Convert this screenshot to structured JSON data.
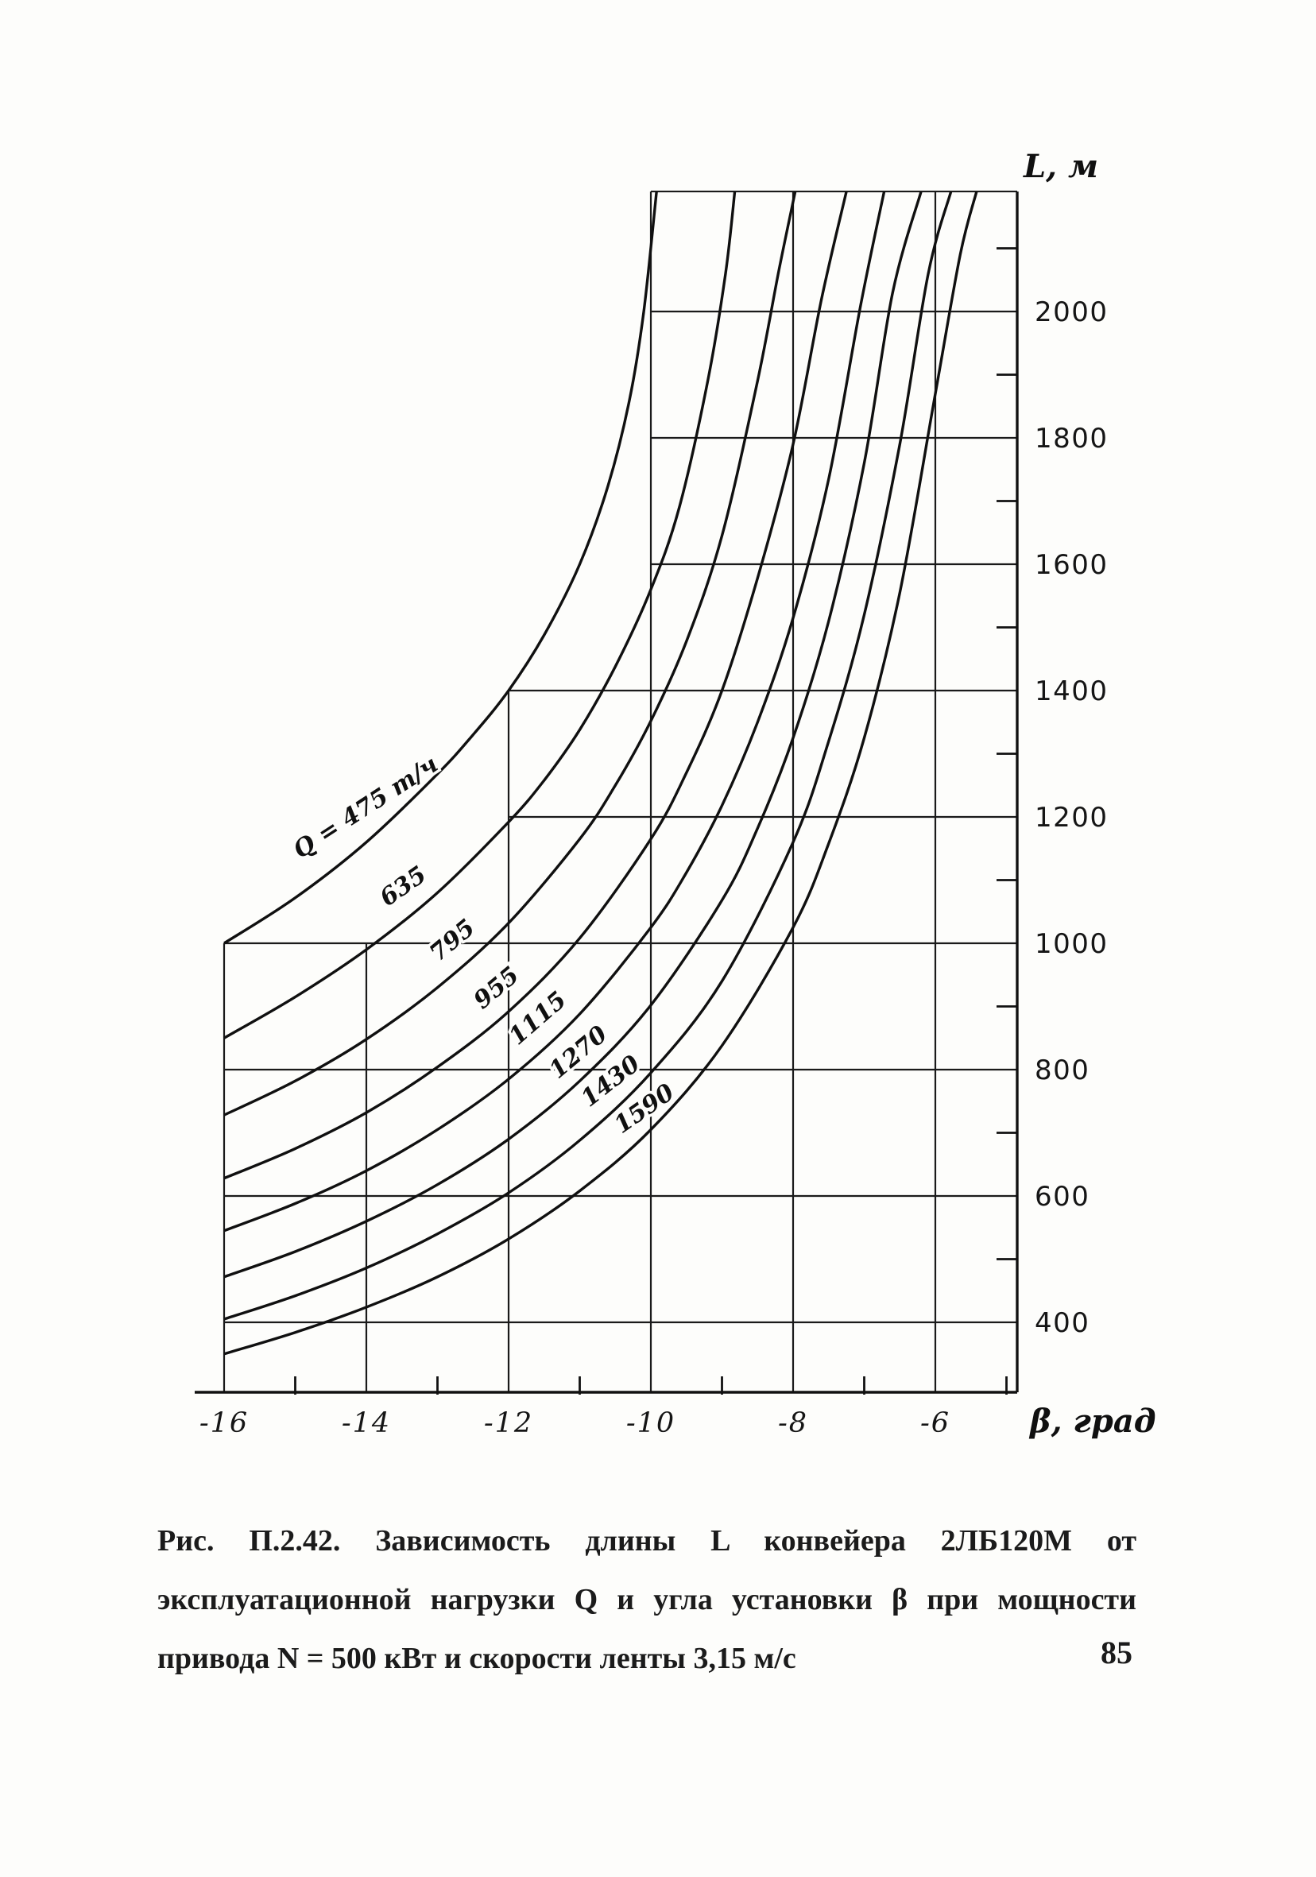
{
  "page": {
    "number": "85"
  },
  "figure_caption": {
    "lines": [
      "Рис. П.2.42. Зависимость длины L конвейера 2ЛБ120М от",
      "эксплуатационной нагрузки Q и угла установки β при мощности",
      "привода N = 500 кВт и скорости ленты 3,15 м/с"
    ]
  },
  "chart_data": {
    "type": "line",
    "title": "",
    "xlabel": "β, град",
    "ylabel": "L, м",
    "xlim": [
      -16,
      -4.85
    ],
    "ylim": [
      290,
      2190
    ],
    "x_ticks": [
      -16,
      -14,
      -12,
      -10,
      -8,
      -6
    ],
    "x_tick_labels": [
      "-16",
      "-14",
      "-12",
      "-10",
      "-8",
      "-6"
    ],
    "x_minor_ticks": [
      -15,
      -13,
      -11,
      -9,
      -7,
      -5
    ],
    "y_ticks": [
      2000,
      1800,
      1600,
      1400,
      1200,
      1000,
      800,
      600,
      400
    ],
    "y_tick_labels": [
      "2000",
      "1800",
      "1600",
      "1400",
      "1200",
      "1000",
      "800",
      "600",
      "400"
    ],
    "y_minor_ticks": [
      2100,
      1900,
      1700,
      1500,
      1300,
      1100,
      900,
      700,
      500
    ],
    "legend_position": "labels-on-curves",
    "grid": {
      "h_lines": [
        {
          "L": 2000,
          "from": -10
        },
        {
          "L": 1800,
          "from": -10
        },
        {
          "L": 1600,
          "from": -10
        },
        {
          "L": 1400,
          "from": -12
        },
        {
          "L": 1200,
          "from": -12
        },
        {
          "L": 1000,
          "from": -16
        },
        {
          "L": 800,
          "from": -16
        },
        {
          "L": 600,
          "from": -16
        },
        {
          "L": 400,
          "from": -16
        }
      ],
      "v_lines": [
        {
          "beta": -16,
          "to_L": 1000
        },
        {
          "beta": -14,
          "to_L": 1000
        },
        {
          "beta": -12,
          "to_L": 1400
        },
        {
          "beta": -10,
          "to_L": 2190
        },
        {
          "beta": -8,
          "to_L": 2190
        },
        {
          "beta": -6,
          "to_L": 2190
        }
      ],
      "top_border": {
        "from": -10,
        "L": 2190
      }
    },
    "series": [
      {
        "q": 475,
        "label": {
          "text": "Q = 475 т/ч",
          "beta": -13.95,
          "L": 1205,
          "angle": -33
        },
        "points": [
          [
            -16,
            1000
          ],
          [
            -15,
            1072
          ],
          [
            -14,
            1160
          ],
          [
            -13,
            1268
          ],
          [
            -12.5,
            1330
          ],
          [
            -12,
            1400
          ],
          [
            -11.5,
            1488
          ],
          [
            -11,
            1600
          ],
          [
            -10.6,
            1725
          ],
          [
            -10.3,
            1860
          ],
          [
            -10.1,
            2000
          ],
          [
            -9.92,
            2190
          ]
        ]
      },
      {
        "q": 635,
        "label": {
          "text": "635",
          "beta": -13.42,
          "L": 1080,
          "angle": -35
        },
        "points": [
          [
            -16,
            850
          ],
          [
            -15,
            915
          ],
          [
            -14,
            990
          ],
          [
            -13,
            1080
          ],
          [
            -12,
            1192
          ],
          [
            -11.5,
            1258
          ],
          [
            -11,
            1338
          ],
          [
            -10.5,
            1438
          ],
          [
            -10,
            1560
          ],
          [
            -9.6,
            1690
          ],
          [
            -9.2,
            1890
          ],
          [
            -8.95,
            2060
          ],
          [
            -8.82,
            2190
          ]
        ]
      },
      {
        "q": 795,
        "label": {
          "text": "795",
          "beta": -12.72,
          "L": 995,
          "angle": -40
        },
        "points": [
          [
            -16,
            728
          ],
          [
            -15,
            782
          ],
          [
            -14,
            848
          ],
          [
            -13,
            930
          ],
          [
            -12,
            1032
          ],
          [
            -11,
            1165
          ],
          [
            -10.5,
            1250
          ],
          [
            -10,
            1352
          ],
          [
            -9.5,
            1478
          ],
          [
            -9,
            1645
          ],
          [
            -8.5,
            1890
          ],
          [
            -8.2,
            2065
          ],
          [
            -7.97,
            2190
          ]
        ]
      },
      {
        "q": 955,
        "label": {
          "text": "955",
          "beta": -12.1,
          "L": 920,
          "angle": -40
        },
        "points": [
          [
            -16,
            628
          ],
          [
            -15,
            675
          ],
          [
            -14,
            732
          ],
          [
            -13,
            804
          ],
          [
            -12,
            892
          ],
          [
            -11,
            1008
          ],
          [
            -10,
            1165
          ],
          [
            -9.5,
            1270
          ],
          [
            -9,
            1400
          ],
          [
            -8.5,
            1578
          ],
          [
            -8,
            1790
          ],
          [
            -7.6,
            2020
          ],
          [
            -7.25,
            2190
          ]
        ]
      },
      {
        "q": 1115,
        "label": {
          "text": "1115",
          "beta": -11.52,
          "L": 872,
          "angle": -41
        },
        "points": [
          [
            -16,
            545
          ],
          [
            -15,
            588
          ],
          [
            -14,
            640
          ],
          [
            -13,
            705
          ],
          [
            -12,
            785
          ],
          [
            -11,
            888
          ],
          [
            -10,
            1025
          ],
          [
            -9.5,
            1112
          ],
          [
            -9,
            1218
          ],
          [
            -8.5,
            1350
          ],
          [
            -8,
            1515
          ],
          [
            -7.5,
            1735
          ],
          [
            -7.05,
            2010
          ],
          [
            -6.72,
            2190
          ]
        ]
      },
      {
        "q": 1270,
        "label": {
          "text": "1270",
          "beta": -10.95,
          "L": 818,
          "angle": -40
        },
        "points": [
          [
            -16,
            472
          ],
          [
            -15,
            512
          ],
          [
            -14,
            560
          ],
          [
            -13,
            618
          ],
          [
            -12,
            690
          ],
          [
            -11,
            782
          ],
          [
            -10,
            902
          ],
          [
            -9,
            1068
          ],
          [
            -8.5,
            1182
          ],
          [
            -8,
            1325
          ],
          [
            -7.5,
            1510
          ],
          [
            -7,
            1760
          ],
          [
            -6.6,
            2030
          ],
          [
            -6.2,
            2190
          ]
        ]
      },
      {
        "q": 1430,
        "label": {
          "text": "1430",
          "beta": -10.5,
          "L": 772,
          "angle": -38
        },
        "points": [
          [
            -16,
            405
          ],
          [
            -15,
            442
          ],
          [
            -14,
            486
          ],
          [
            -13,
            540
          ],
          [
            -12,
            605
          ],
          [
            -11,
            688
          ],
          [
            -10,
            795
          ],
          [
            -9,
            940
          ],
          [
            -8,
            1160
          ],
          [
            -7.5,
            1320
          ],
          [
            -7,
            1520
          ],
          [
            -6.5,
            1790
          ],
          [
            -6.1,
            2060
          ],
          [
            -5.78,
            2190
          ]
        ]
      },
      {
        "q": 1590,
        "label": {
          "text": "1590",
          "beta": -10.03,
          "L": 728,
          "angle": -35
        },
        "points": [
          [
            -16,
            350
          ],
          [
            -15,
            384
          ],
          [
            -14,
            424
          ],
          [
            -13,
            472
          ],
          [
            -12,
            532
          ],
          [
            -11,
            608
          ],
          [
            -10,
            705
          ],
          [
            -9,
            838
          ],
          [
            -8,
            1025
          ],
          [
            -7.5,
            1158
          ],
          [
            -7,
            1325
          ],
          [
            -6.5,
            1555
          ],
          [
            -6,
            1870
          ],
          [
            -5.65,
            2090
          ],
          [
            -5.42,
            2190
          ]
        ]
      }
    ]
  }
}
